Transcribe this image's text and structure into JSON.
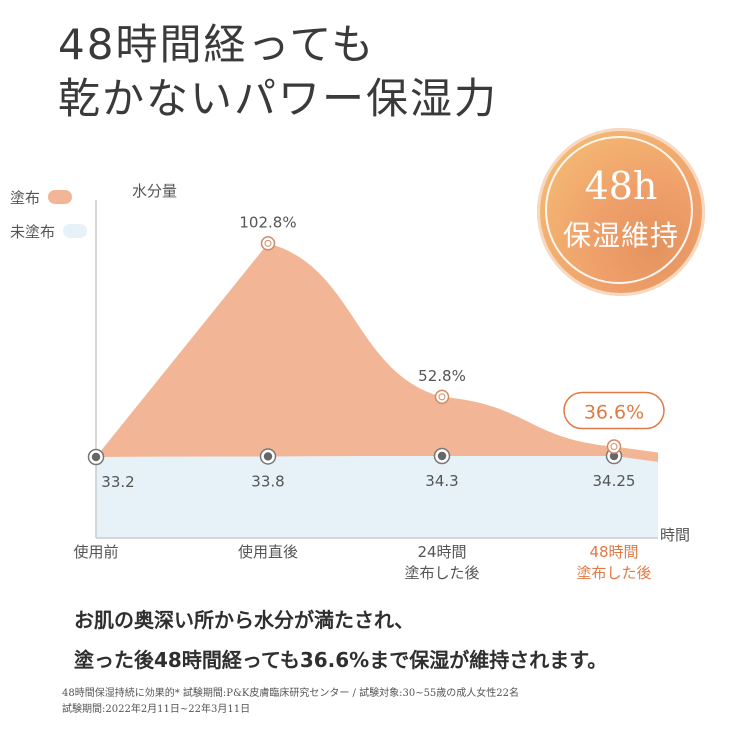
{
  "headline": {
    "line1": "48時間経っても",
    "line2": "乾かないパワー保湿力"
  },
  "badge": {
    "line1": "48h",
    "line2": "保湿維持"
  },
  "legend": {
    "applied": "塗布",
    "not_applied": "未塗布"
  },
  "colors": {
    "applied": "#f2b595",
    "not_applied": "#e6f2f8",
    "highlight": "#e07a45",
    "axis": "#cccccc"
  },
  "chart_data": {
    "type": "area",
    "ylabel": "水分量",
    "xlabel": "時間",
    "categories": [
      [
        "使用前"
      ],
      [
        "使用直後"
      ],
      [
        "24時間",
        "塗布した後"
      ],
      [
        "48時間",
        "塗布した後"
      ]
    ],
    "highlight_category": 3,
    "series": [
      {
        "name": "塗布",
        "values": [
          33.2,
          102.8,
          52.8,
          36.6
        ],
        "labels": [
          "",
          "102.8%",
          "52.8%",
          "36.6%"
        ]
      },
      {
        "name": "未塗布",
        "values": [
          33.2,
          33.8,
          34.3,
          34.25
        ],
        "labels": [
          "33.2",
          "33.8",
          "34.3",
          "34.25"
        ]
      }
    ]
  },
  "caption": {
    "line1": "お肌の奥深い所から水分が満たされ、",
    "line2": "塗った後48時間経っても36.6%まで保湿が維持されます。"
  },
  "footnote": {
    "line1": "48時間保湿持続に効果的* 試験期間:P&K皮膚臨床研究センター / 試験対象:30~55歳の成人女性22名",
    "line2": "試験期間:2022年2月11日~22年3月11日"
  }
}
